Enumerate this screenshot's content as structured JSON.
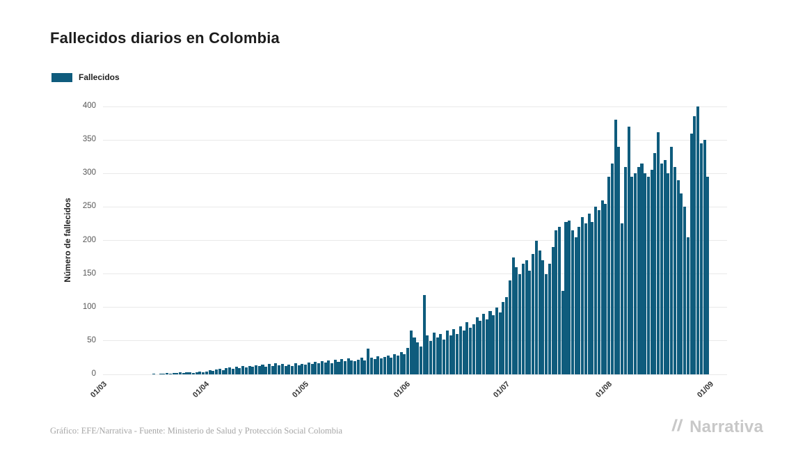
{
  "page": {
    "title": "Fallecidos diarios en Colombia",
    "footer_credit": "Gráfico: EFE/Narrativa - Fuente: Ministerio de Salud y Protección Social Colombia",
    "brand_name": "Narrativa"
  },
  "legend": {
    "label": "Fallecidos"
  },
  "chart_data": {
    "type": "bar",
    "title": "Fallecidos diarios en Colombia",
    "xlabel": "",
    "ylabel": "Número de fallecidos",
    "ylim": [
      0,
      400
    ],
    "y_ticks": [
      0,
      50,
      100,
      150,
      200,
      250,
      300,
      350,
      400
    ],
    "x_ticks": [
      "01/03",
      "01/04",
      "01/05",
      "01/06",
      "01/07",
      "01/08",
      "01/09"
    ],
    "x_tick_day_offsets": [
      0,
      31,
      61,
      92,
      122,
      153,
      184
    ],
    "grid": true,
    "legend_position": "top-left",
    "legend_entries": [
      "Fallecidos"
    ],
    "bar_color": "#0f5c7d",
    "values": [
      0,
      0,
      0,
      0,
      0,
      0,
      0,
      0,
      0,
      0,
      0,
      0,
      0,
      0,
      0,
      1,
      0,
      1,
      1,
      2,
      1,
      2,
      2,
      3,
      2,
      3,
      3,
      2,
      3,
      4,
      3,
      4,
      6,
      5,
      7,
      8,
      6,
      9,
      10,
      8,
      11,
      9,
      12,
      10,
      13,
      11,
      14,
      12,
      15,
      11,
      16,
      13,
      17,
      14,
      16,
      12,
      15,
      13,
      17,
      14,
      16,
      15,
      18,
      16,
      19,
      17,
      20,
      18,
      21,
      17,
      22,
      19,
      23,
      20,
      24,
      21,
      20,
      22,
      25,
      21,
      38,
      25,
      23,
      27,
      24,
      26,
      28,
      25,
      30,
      28,
      33,
      30,
      40,
      65,
      55,
      48,
      42,
      118,
      58,
      50,
      62,
      55,
      60,
      52,
      65,
      58,
      68,
      60,
      72,
      65,
      78,
      70,
      75,
      85,
      80,
      90,
      82,
      95,
      88,
      100,
      92,
      108,
      115,
      140,
      175,
      160,
      150,
      165,
      170,
      155,
      180,
      200,
      185,
      170,
      150,
      165,
      190,
      215,
      220,
      125,
      228,
      230,
      215,
      205,
      220,
      235,
      225,
      240,
      228,
      250,
      245,
      260,
      255,
      295,
      315,
      380,
      340,
      225,
      310,
      370,
      295,
      300,
      310,
      315,
      300,
      295,
      305,
      330,
      362,
      315,
      320,
      300,
      340,
      310,
      290,
      270,
      250,
      205,
      360,
      385,
      400,
      345,
      350,
      295
    ]
  }
}
